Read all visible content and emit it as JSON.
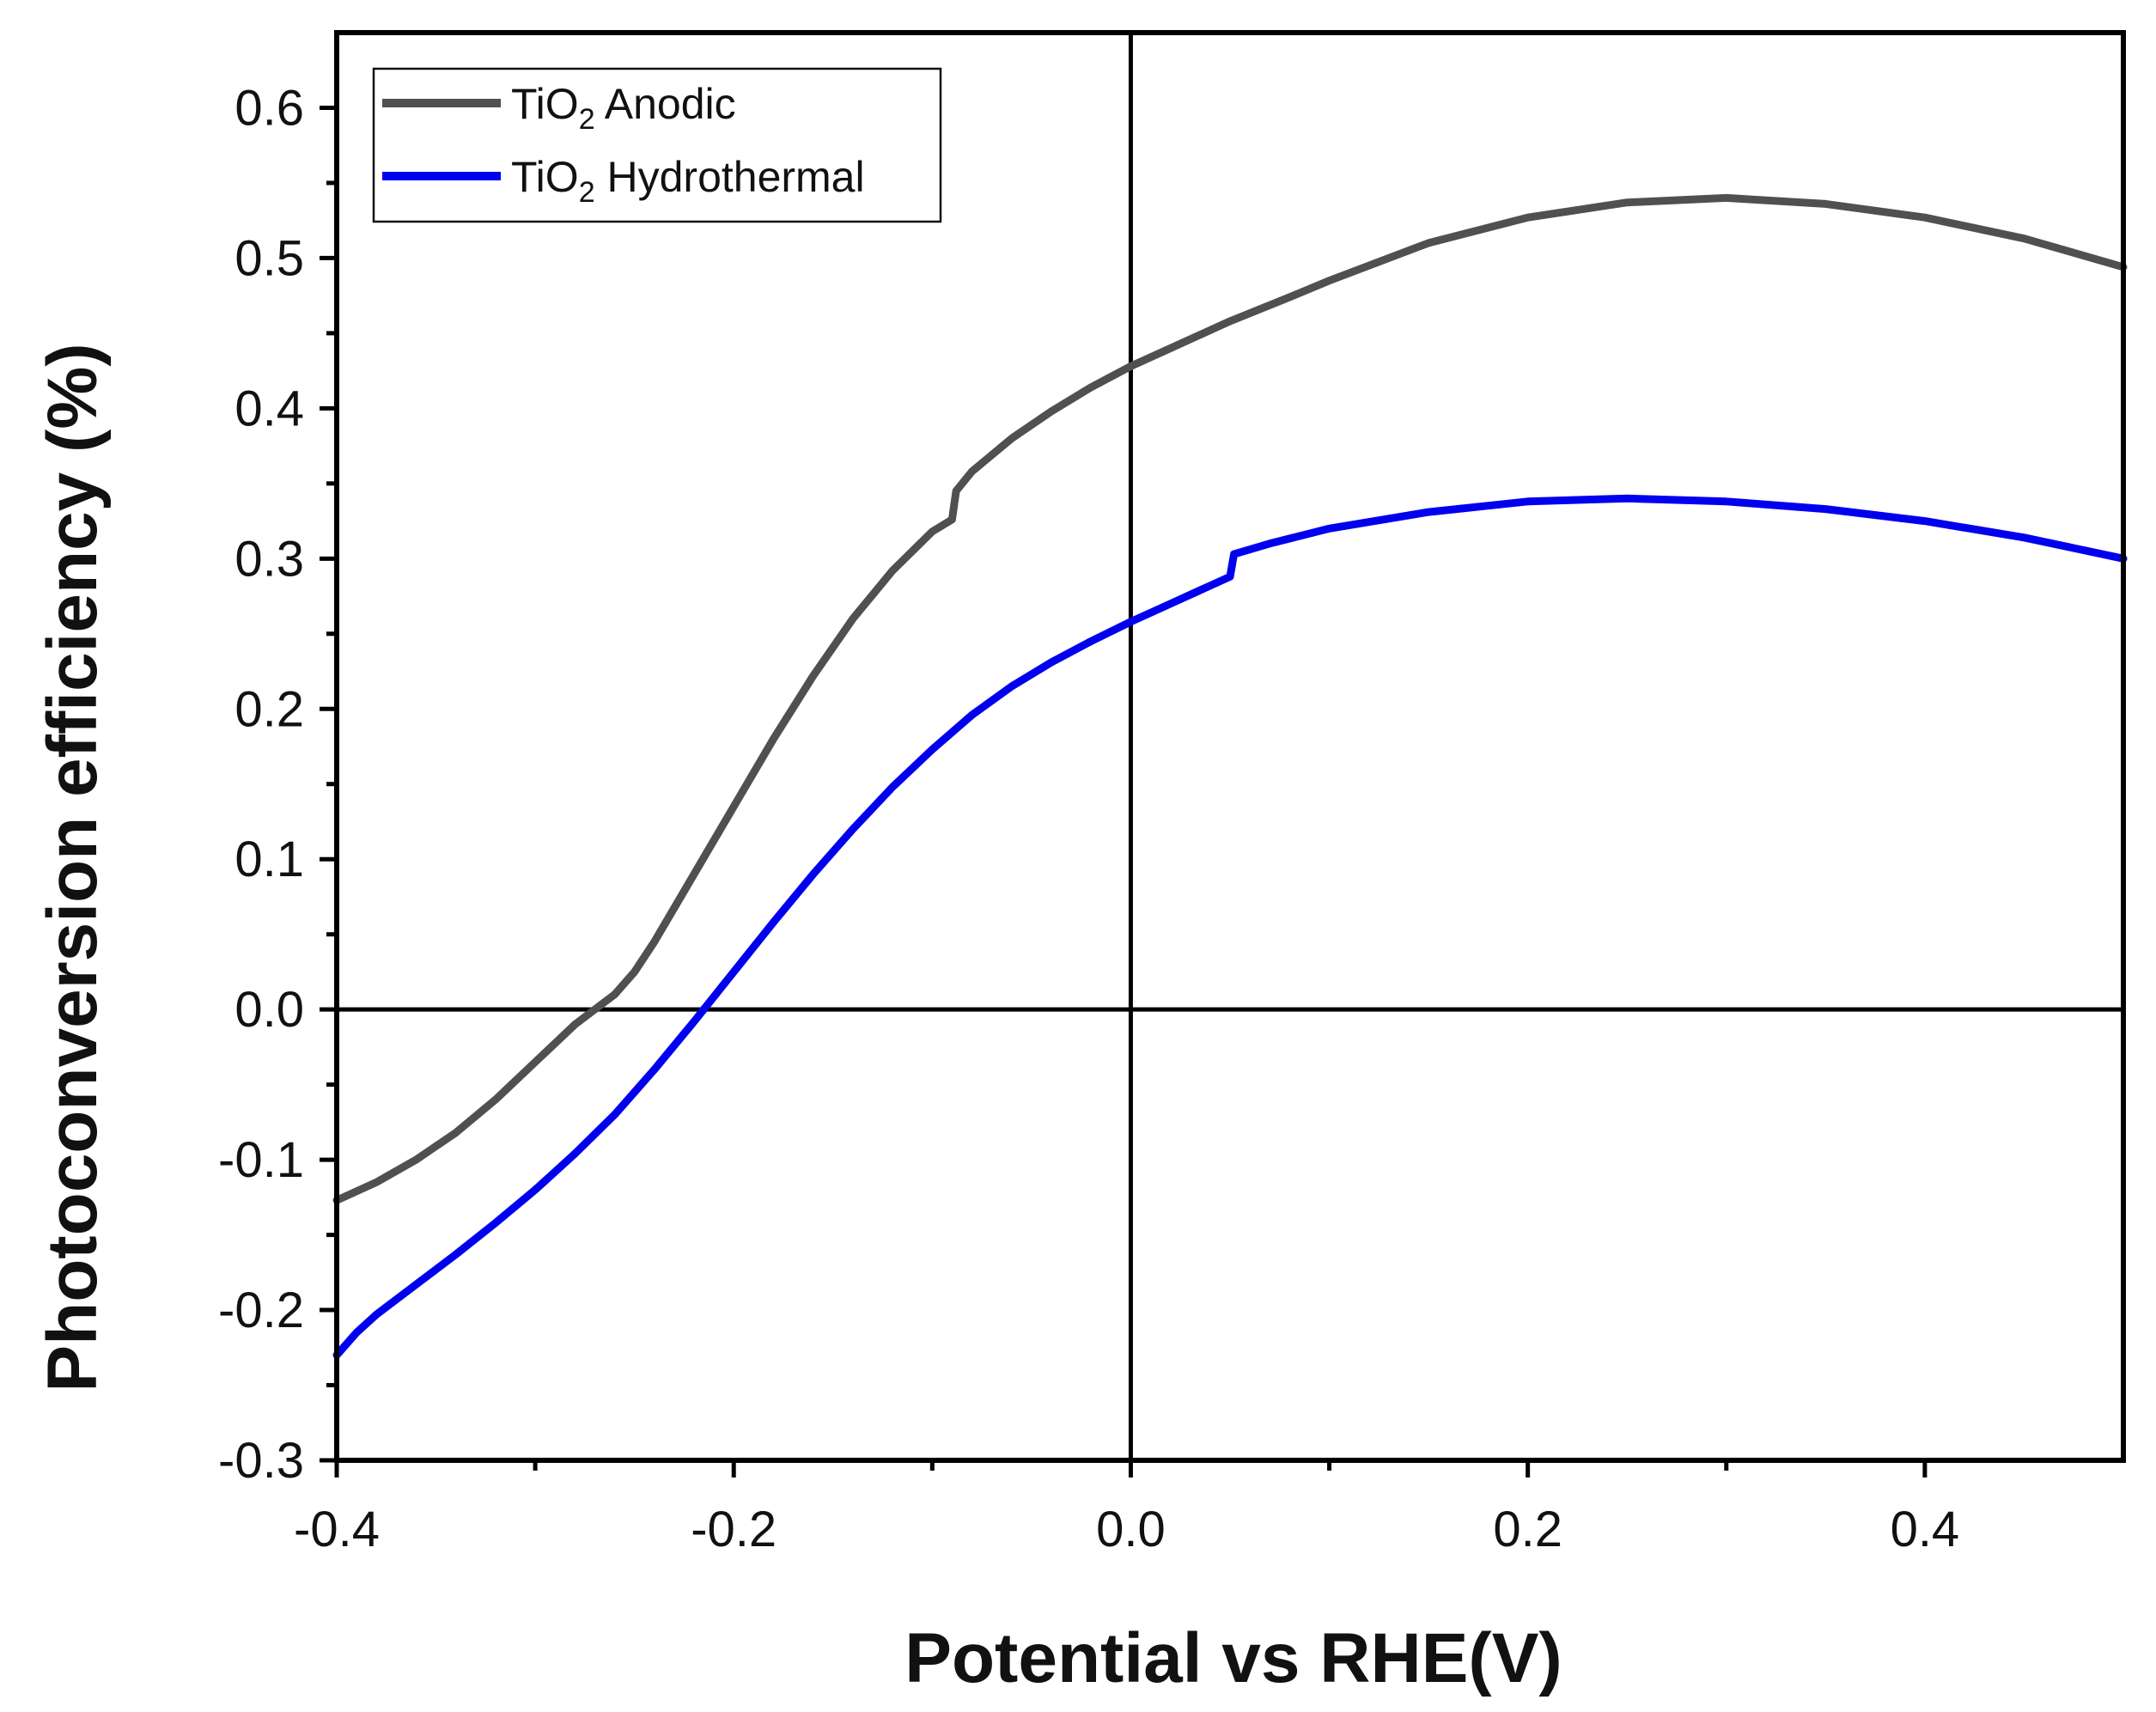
{
  "chart_data": {
    "type": "line",
    "title": "",
    "xlabel": "Potential vs RHE(V)",
    "ylabel": "Photoconversion efficiency (%)",
    "xlim": [
      -0.4,
      0.5
    ],
    "ylim": [
      -0.3,
      0.65
    ],
    "x_ticks": [
      -0.4,
      -0.2,
      0.0,
      0.2,
      0.4
    ],
    "x_tick_labels": [
      "-0.4",
      "-0.2",
      "0.0",
      "0.2",
      "0.4"
    ],
    "x_minor_ticks": [
      -0.3,
      -0.1,
      0.1,
      0.3
    ],
    "y_ticks": [
      -0.3,
      -0.2,
      -0.1,
      0.0,
      0.1,
      0.2,
      0.3,
      0.4,
      0.5,
      0.6
    ],
    "y_tick_labels": [
      "-0.3",
      "-0.2",
      "-0.1",
      "0.0",
      "0.1",
      "0.2",
      "0.3",
      "0.4",
      "0.5",
      "0.6"
    ],
    "y_minor_ticks": [
      -0.25,
      -0.15,
      -0.05,
      0.05,
      0.15,
      0.25,
      0.35,
      0.45,
      0.55
    ],
    "reference_lines": {
      "x": 0.0,
      "y": 0.0
    },
    "grid": false,
    "legend_position": "top-left",
    "series": [
      {
        "name": "TiO2 Anodic",
        "label_main": "TiO",
        "label_sub": "2",
        "label_rest": " Anodic",
        "color": "#505050",
        "x": [
          -0.4,
          -0.38,
          -0.36,
          -0.34,
          -0.32,
          -0.3,
          -0.28,
          -0.27,
          -0.26,
          -0.25,
          -0.24,
          -0.22,
          -0.2,
          -0.18,
          -0.16,
          -0.14,
          -0.12,
          -0.1,
          -0.09,
          -0.088,
          -0.08,
          -0.06,
          -0.04,
          -0.02,
          0.0,
          0.02,
          0.05,
          0.08,
          0.1,
          0.15,
          0.2,
          0.25,
          0.3,
          0.35,
          0.4,
          0.45,
          0.5
        ],
        "y": [
          -0.127,
          -0.115,
          -0.1,
          -0.082,
          -0.06,
          -0.035,
          -0.01,
          0.0,
          0.01,
          0.025,
          0.045,
          0.09,
          0.135,
          0.18,
          0.222,
          0.26,
          0.292,
          0.318,
          0.326,
          0.345,
          0.358,
          0.38,
          0.398,
          0.414,
          0.428,
          0.44,
          0.458,
          0.474,
          0.485,
          0.51,
          0.527,
          0.537,
          0.54,
          0.536,
          0.527,
          0.513,
          0.494
        ]
      },
      {
        "name": "TiO2 Hydrothermal",
        "label_main": "TiO",
        "label_sub": "2",
        "label_rest": " Hydrothermal",
        "color": "#0000ee",
        "x": [
          -0.4,
          -0.39,
          -0.38,
          -0.36,
          -0.34,
          -0.32,
          -0.3,
          -0.28,
          -0.26,
          -0.24,
          -0.22,
          -0.2,
          -0.18,
          -0.16,
          -0.14,
          -0.12,
          -0.1,
          -0.08,
          -0.06,
          -0.04,
          -0.02,
          0.0,
          0.02,
          0.04,
          0.05,
          0.052,
          0.07,
          0.1,
          0.15,
          0.2,
          0.25,
          0.3,
          0.35,
          0.4,
          0.45,
          0.5
        ],
        "y": [
          -0.23,
          -0.215,
          -0.203,
          -0.183,
          -0.163,
          -0.142,
          -0.12,
          -0.096,
          -0.07,
          -0.04,
          -0.008,
          0.025,
          0.058,
          0.09,
          0.12,
          0.148,
          0.173,
          0.196,
          0.215,
          0.231,
          0.245,
          0.258,
          0.27,
          0.282,
          0.288,
          0.303,
          0.31,
          0.32,
          0.331,
          0.338,
          0.34,
          0.338,
          0.333,
          0.325,
          0.314,
          0.3
        ]
      }
    ]
  }
}
